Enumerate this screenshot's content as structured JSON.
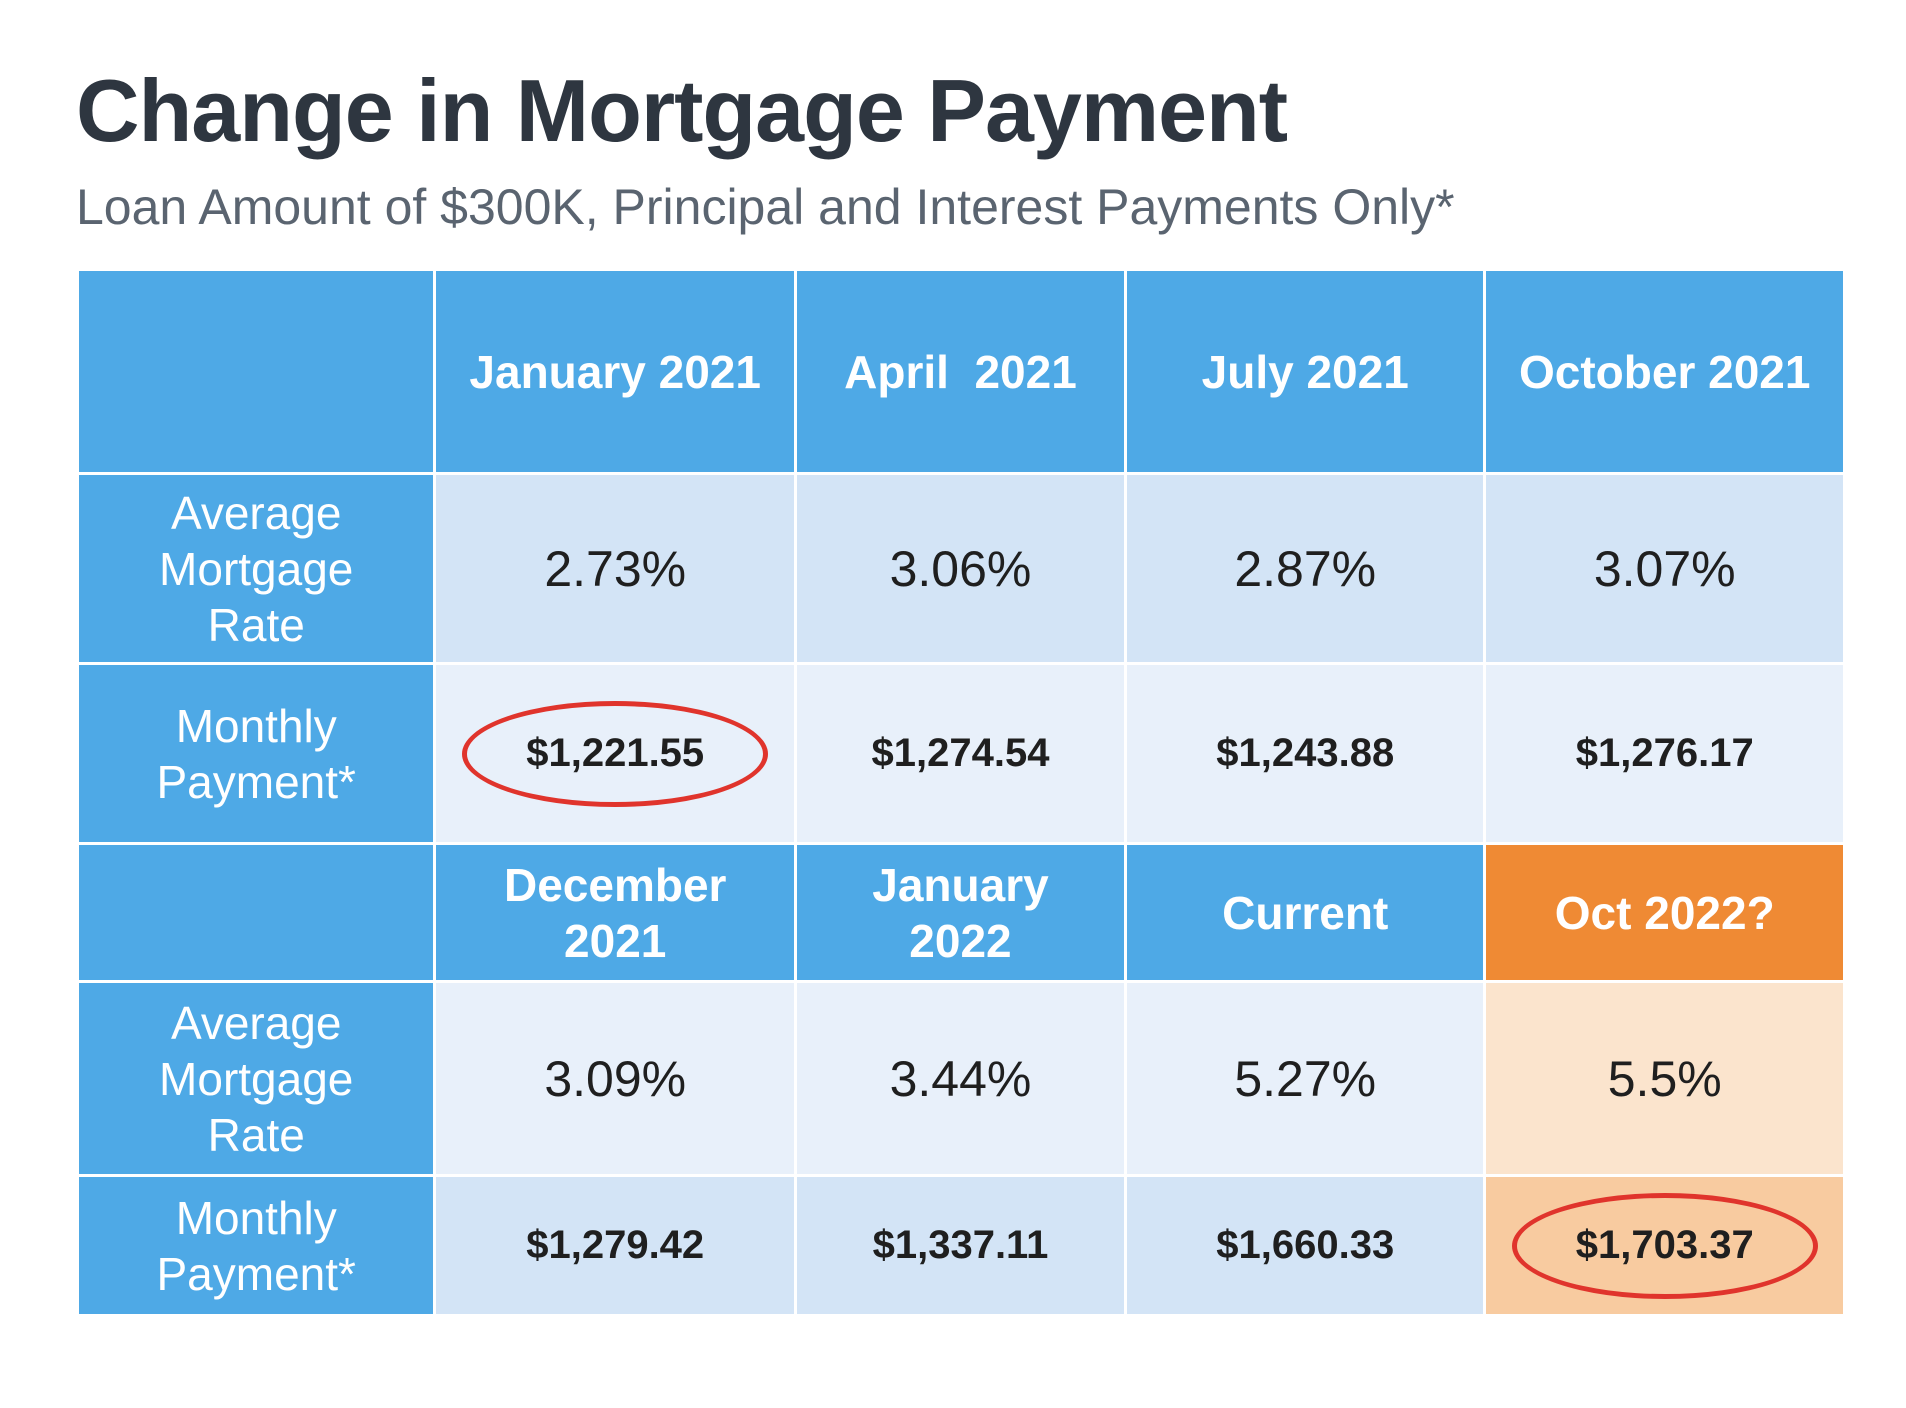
{
  "title": "Change in Mortgage Payment",
  "subtitle": "Loan Amount of $300K, Principal and Interest Payments Only*",
  "labels": {
    "rate": [
      "Average",
      "Mortgage",
      "Rate"
    ],
    "payment": [
      "Monthly",
      "Payment*"
    ]
  },
  "chart_data": {
    "type": "table",
    "title": "Change in Mortgage Payment",
    "subtitle": "Loan Amount of $300K, Principal and Interest Payments Only*",
    "sections": [
      {
        "columns": [
          "January 2021",
          "April  2021",
          "July 2021",
          "October 2021"
        ],
        "rates": [
          "2.73%",
          "3.06%",
          "2.87%",
          "3.07%"
        ],
        "payments": [
          "$1,221.55",
          "$1,274.54",
          "$1,243.88",
          "$1,276.17"
        ]
      },
      {
        "columns": [
          [
            "December",
            "2021"
          ],
          [
            "January",
            "2022"
          ],
          [
            "Current"
          ],
          [
            "Oct 2022?"
          ]
        ],
        "rates": [
          "3.09%",
          "3.44%",
          "5.27%",
          "5.5%"
        ],
        "payments": [
          "$1,279.42",
          "$1,337.11",
          "$1,660.33",
          "$1,703.37"
        ]
      }
    ],
    "highlighted_payments": [
      "$1,221.55",
      "$1,703.37"
    ],
    "colors": {
      "header_blue": "#4ea9e6",
      "header_orange": "#ef8a34",
      "highlight_circle": "#e0342c"
    }
  }
}
